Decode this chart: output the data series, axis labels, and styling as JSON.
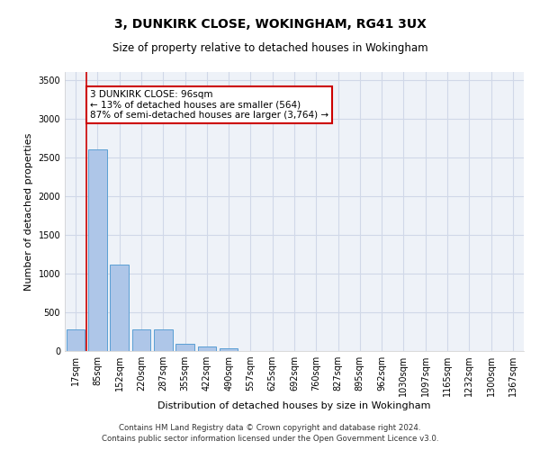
{
  "title1": "3, DUNKIRK CLOSE, WOKINGHAM, RG41 3UX",
  "title2": "Size of property relative to detached houses in Wokingham",
  "xlabel": "Distribution of detached houses by size in Wokingham",
  "ylabel": "Number of detached properties",
  "footnote1": "Contains HM Land Registry data © Crown copyright and database right 2024.",
  "footnote2": "Contains public sector information licensed under the Open Government Licence v3.0.",
  "bar_labels": [
    "17sqm",
    "85sqm",
    "152sqm",
    "220sqm",
    "287sqm",
    "355sqm",
    "422sqm",
    "490sqm",
    "557sqm",
    "625sqm",
    "692sqm",
    "760sqm",
    "827sqm",
    "895sqm",
    "962sqm",
    "1030sqm",
    "1097sqm",
    "1165sqm",
    "1232sqm",
    "1300sqm",
    "1367sqm"
  ],
  "bar_values": [
    275,
    2600,
    1120,
    280,
    280,
    95,
    55,
    38,
    0,
    0,
    0,
    0,
    0,
    0,
    0,
    0,
    0,
    0,
    0,
    0,
    0
  ],
  "bar_color": "#aec6e8",
  "bar_edge_color": "#5a9fd4",
  "grid_color": "#d0d8e8",
  "background_color": "#eef2f8",
  "vline_color": "#cc0000",
  "annotation_text": "3 DUNKIRK CLOSE: 96sqm\n← 13% of detached houses are smaller (564)\n87% of semi-detached houses are larger (3,764) →",
  "annotation_box_color": "#ffffff",
  "annotation_box_edge": "#cc0000",
  "ylim": [
    0,
    3600
  ],
  "yticks": [
    0,
    500,
    1000,
    1500,
    2000,
    2500,
    3000,
    3500
  ],
  "title1_fontsize": 10,
  "title2_fontsize": 8.5,
  "xlabel_fontsize": 8,
  "ylabel_fontsize": 8,
  "tick_fontsize": 7,
  "annot_fontsize": 7.5
}
